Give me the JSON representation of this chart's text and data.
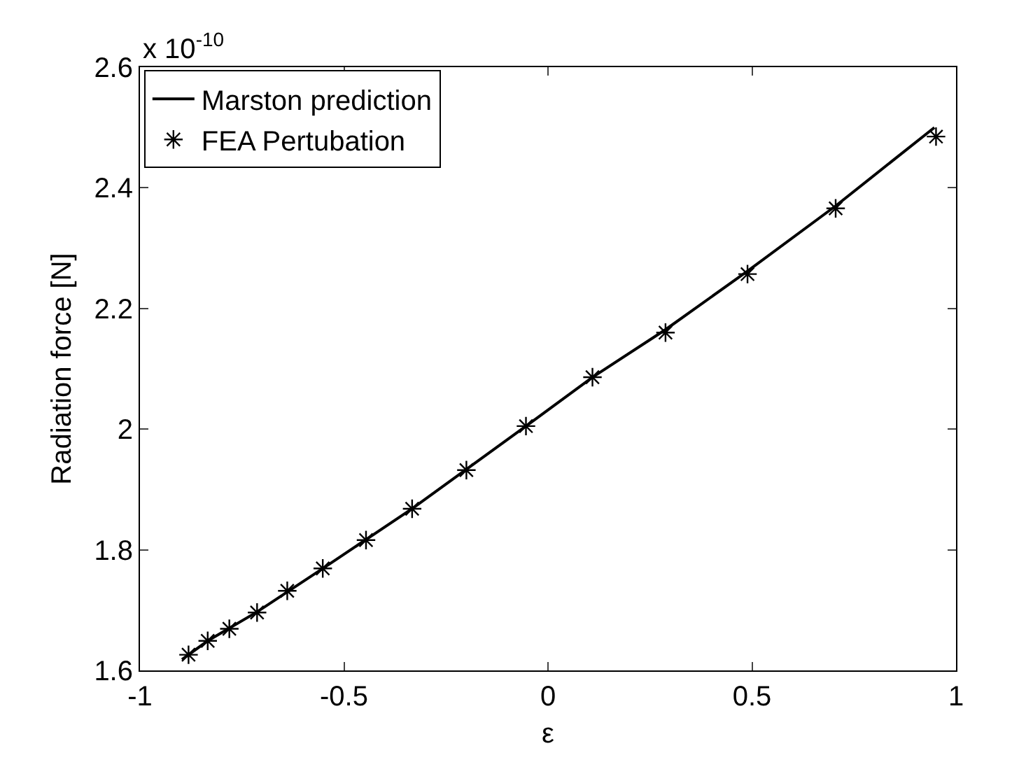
{
  "chart_data": {
    "type": "scatter",
    "xlabel": "ε",
    "ylabel": "Radiation force [N]",
    "annotations": [
      "x 10$^{-10}$"
    ],
    "xlim": [
      -1,
      1
    ],
    "xticks": [
      -1,
      -0.5,
      0,
      0.5,
      1
    ],
    "ylim": [
      1.6,
      2.6
    ],
    "yticks": [
      1.6,
      1.8,
      2,
      2.2,
      2.4,
      2.6
    ],
    "grid": false,
    "legend": "top left",
    "series": [
      {
        "name": "Marston prediction",
        "type": "line",
        "color": "#000000",
        "marker": "none",
        "line_style": "solid",
        "x": [
          -0.897,
          -0.834,
          -0.713,
          -0.552,
          -0.333,
          -0.054,
          0.109,
          0.288,
          0.489,
          0.705,
          0.947
        ],
        "values": [
          1.618,
          1.649,
          1.697,
          1.769,
          1.868,
          2.005,
          2.086,
          2.165,
          2.262,
          2.37,
          2.5
        ]
      },
      {
        "name": "FEA Pertubation",
        "color": "#000000",
        "marker": "cross",
        "x": [
          -0.881,
          -0.834,
          -0.781,
          -0.713,
          -0.639,
          -0.552,
          -0.446,
          -0.333,
          -0.2,
          -0.054,
          0.109,
          0.288,
          0.489,
          0.705,
          0.951
        ],
        "values": [
          1.626,
          1.649,
          1.669,
          1.696,
          1.732,
          1.769,
          1.816,
          1.868,
          1.932,
          2.005,
          2.086,
          2.16,
          2.257,
          2.366,
          2.485
        ]
      }
    ]
  }
}
